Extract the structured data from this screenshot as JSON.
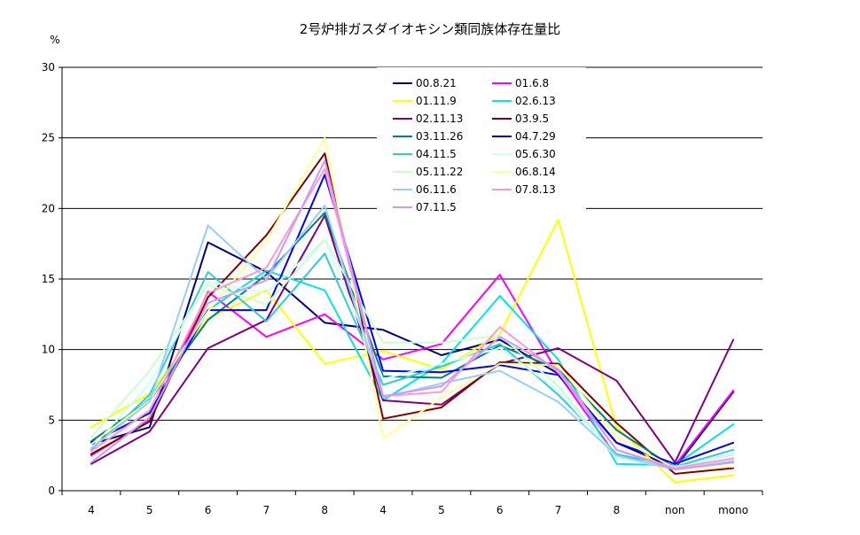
{
  "chart_data": {
    "type": "line",
    "title": "2号炉排ガスダイオキシン類同族体存在量比",
    "ylabel": "%",
    "xlabel": "",
    "ylim": [
      0,
      30
    ],
    "yticks": [
      0,
      5,
      10,
      15,
      20,
      25,
      30
    ],
    "grid": true,
    "legend": "top-center",
    "categories": [
      "4",
      "5",
      "6",
      "7",
      "8",
      "4",
      "5",
      "6",
      "7",
      "8",
      "non",
      "mono"
    ],
    "series": [
      {
        "name": "00.8.21",
        "color": "#000080",
        "values": [
          3.3,
          4.5,
          17.6,
          15.5,
          11.9,
          11.4,
          9.6,
          10.7,
          8.3,
          3.4,
          1.6,
          7.0
        ]
      },
      {
        "name": "01.6.8",
        "color": "#ff00ff",
        "values": [
          2.5,
          5.0,
          14.1,
          10.9,
          12.5,
          9.3,
          10.4,
          15.3,
          8.3,
          2.4,
          1.8,
          7.1
        ]
      },
      {
        "name": "01.11.9",
        "color": "#ffff00",
        "values": [
          4.5,
          6.9,
          12.2,
          14.2,
          9.0,
          9.9,
          8.6,
          11.1,
          19.2,
          4.5,
          0.6,
          1.1
        ]
      },
      {
        "name": "02.6.13",
        "color": "#00e5e5",
        "values": [
          3.0,
          6.5,
          12.8,
          15.6,
          14.2,
          6.4,
          9.0,
          13.8,
          9.3,
          1.9,
          1.8,
          4.7
        ]
      },
      {
        "name": "02.11.13",
        "color": "#800080",
        "values": [
          1.9,
          4.2,
          10.1,
          12.1,
          19.5,
          6.4,
          6.1,
          9.0,
          10.1,
          7.8,
          2.0,
          10.7
        ]
      },
      {
        "name": "03.9.5",
        "color": "#800000",
        "values": [
          2.6,
          4.9,
          13.7,
          18.1,
          23.9,
          5.1,
          5.9,
          9.1,
          9.0,
          4.8,
          1.2,
          1.6
        ]
      },
      {
        "name": "03.11.26",
        "color": "#008080",
        "values": [
          3.5,
          6.4,
          12.1,
          15.3,
          19.7,
          8.1,
          8.0,
          10.3,
          8.6,
          4.3,
          1.6,
          2.6
        ]
      },
      {
        "name": "04.7.29",
        "color": "#0000ff",
        "values": [
          3.4,
          5.5,
          12.8,
          12.8,
          22.4,
          8.5,
          8.4,
          8.9,
          8.2,
          3.4,
          1.9,
          3.4
        ]
      },
      {
        "name": "04.11.5",
        "color": "#33cccc",
        "values": [
          2.9,
          6.8,
          15.5,
          12.0,
          16.8,
          7.5,
          8.8,
          10.4,
          6.8,
          2.6,
          1.7,
          2.9
        ]
      },
      {
        "name": "05.6.30",
        "color": "#ccffff",
        "values": [
          3.0,
          7.6,
          14.8,
          14.0,
          17.8,
          7.9,
          9.0,
          10.1,
          7.1,
          2.3,
          1.6,
          2.6
        ]
      },
      {
        "name": "05.11.22",
        "color": "#ccffcc",
        "values": [
          3.8,
          8.5,
          14.6,
          13.2,
          17.8,
          10.5,
          10.5,
          11.0,
          7.4,
          2.4,
          1.7,
          2.2
        ]
      },
      {
        "name": "06.8.14",
        "color": "#ffff99",
        "values": [
          3.3,
          6.4,
          12.7,
          17.7,
          25.0,
          3.7,
          6.6,
          9.0,
          8.9,
          3.8,
          1.6,
          1.7
        ]
      },
      {
        "name": "06.11.6",
        "color": "#99ccff",
        "values": [
          3.0,
          6.3,
          18.8,
          15.0,
          20.2,
          6.6,
          7.6,
          8.5,
          6.3,
          2.5,
          1.5,
          2.1
        ]
      },
      {
        "name": "07.8.13",
        "color": "#ff99cc",
        "values": [
          2.8,
          5.7,
          14.0,
          15.8,
          22.8,
          6.7,
          7.0,
          11.6,
          8.4,
          2.9,
          1.6,
          2.3
        ]
      },
      {
        "name": "07.11.5",
        "color": "#cc99ff",
        "values": [
          2.0,
          5.2,
          13.3,
          14.9,
          23.4,
          6.7,
          7.4,
          10.9,
          8.6,
          2.9,
          1.5,
          2.0
        ]
      }
    ]
  }
}
